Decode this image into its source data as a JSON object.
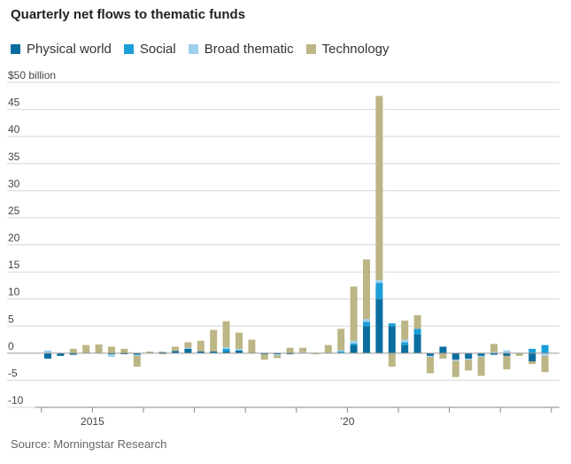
{
  "title": "Quarterly net flows to thematic funds",
  "source": "Source: Morningstar Research",
  "colors": {
    "physical": "#0a6e9e",
    "social": "#1a9fd8",
    "broad": "#9dd0ec",
    "tech": "#bcb585",
    "grid": "#d6d6d6",
    "zero": "#999999"
  },
  "chart_data": {
    "type": "bar",
    "stacked": true,
    "title": "Quarterly net flows to thematic funds",
    "ylim": [
      -10,
      50
    ],
    "yunit_label": "$50 billion",
    "yticks": [
      -10,
      -5,
      0,
      5,
      10,
      15,
      20,
      25,
      30,
      35,
      40,
      45,
      50
    ],
    "ytick_labels": [
      "-10",
      "-5",
      "0",
      "5",
      "10",
      "15",
      "20",
      "25",
      "30",
      "35",
      "40",
      "45",
      "$50 billion"
    ],
    "xtick_labels": [
      {
        "label": "2015",
        "year": 2015
      },
      {
        "label": "’20",
        "year": 2020
      }
    ],
    "grid": true,
    "legend_position": "top-left",
    "categories": [
      "2014 Q1",
      "2014 Q2",
      "2014 Q3",
      "2014 Q4",
      "2015 Q1",
      "2015 Q2",
      "2015 Q3",
      "2015 Q4",
      "2016 Q1",
      "2016 Q2",
      "2016 Q3",
      "2016 Q4",
      "2017 Q1",
      "2017 Q2",
      "2017 Q3",
      "2017 Q4",
      "2018 Q1",
      "2018 Q2",
      "2018 Q3",
      "2018 Q4",
      "2019 Q1",
      "2019 Q2",
      "2019 Q3",
      "2019 Q4",
      "2020 Q1",
      "2020 Q2",
      "2020 Q3",
      "2020 Q4",
      "2021 Q1",
      "2021 Q2",
      "2021 Q3",
      "2021 Q4",
      "2022 Q1",
      "2022 Q2",
      "2022 Q3",
      "2022 Q4",
      "2023 Q1",
      "2023 Q2",
      "2023 Q3",
      "2023 Q4"
    ],
    "series": [
      {
        "name": "Physical world",
        "color_key": "physical",
        "values": [
          -1.0,
          -0.5,
          -0.3,
          0.0,
          0.0,
          -0.2,
          -0.2,
          -0.3,
          0.0,
          0.2,
          0.4,
          0.8,
          0.3,
          0.3,
          0.3,
          0.5,
          0.0,
          -0.2,
          -0.2,
          -0.2,
          0.0,
          0.0,
          0.0,
          0.0,
          1.5,
          5.0,
          10.0,
          5.0,
          1.5,
          3.5,
          -0.5,
          1.2,
          -1.2,
          -1.0,
          -0.5,
          -0.3,
          -0.5,
          0.0,
          -1.5,
          0.0
        ]
      },
      {
        "name": "Social",
        "color_key": "social",
        "values": [
          0.0,
          0.0,
          0.0,
          0.0,
          0.0,
          0.0,
          0.0,
          0.0,
          0.0,
          0.0,
          0.0,
          0.0,
          0.0,
          0.0,
          0.5,
          0.0,
          0.0,
          0.0,
          0.0,
          0.0,
          0.0,
          0.0,
          0.0,
          0.3,
          0.3,
          0.8,
          3.0,
          0.5,
          0.5,
          1.0,
          0.0,
          0.0,
          0.0,
          0.0,
          0.0,
          0.0,
          0.0,
          0.0,
          0.8,
          1.5
        ]
      },
      {
        "name": "Broad thematic",
        "color_key": "broad",
        "values": [
          0.5,
          0.0,
          0.0,
          0.0,
          0.0,
          -0.5,
          0.0,
          -0.2,
          0.0,
          0.0,
          0.0,
          0.2,
          0.0,
          0.0,
          0.3,
          0.3,
          0.0,
          0.0,
          -0.2,
          0.0,
          0.2,
          0.0,
          0.0,
          0.2,
          0.5,
          0.5,
          0.5,
          0.0,
          0.5,
          0.0,
          -0.2,
          0.0,
          -0.2,
          -0.2,
          -0.2,
          0.2,
          0.5,
          0.0,
          0.0,
          -0.5
        ]
      },
      {
        "name": "Technology",
        "color_key": "tech",
        "values": [
          0.0,
          0.0,
          0.8,
          1.5,
          1.6,
          1.2,
          0.8,
          -2.0,
          0.3,
          -0.2,
          0.8,
          1.0,
          2.0,
          4.0,
          4.8,
          3.0,
          2.5,
          -1.0,
          -0.5,
          1.0,
          0.8,
          -0.2,
          1.5,
          4.0,
          10.0,
          11.0,
          34.0,
          -2.5,
          3.5,
          2.5,
          -3.0,
          -1.0,
          -3.0,
          -2.0,
          -3.5,
          1.5,
          -2.5,
          -0.5,
          -0.5,
          -3.0
        ]
      }
    ]
  }
}
